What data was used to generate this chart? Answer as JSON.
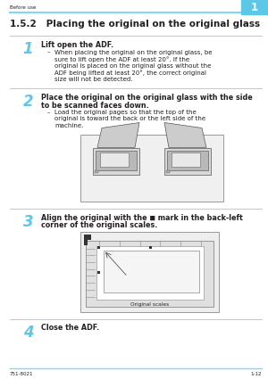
{
  "header_text": "Before use",
  "header_number": "1",
  "header_line_color": "#7fd8f0",
  "title": "1.5.2   Placing the original on the original glass",
  "footer_left": "751-8021",
  "footer_right": "1-12",
  "bg_color": "#ffffff",
  "text_color": "#231f20",
  "step_num_color": "#5bc8e8",
  "divider_color": "#bbbbbb",
  "heading_fontsize": 5.8,
  "body_fontsize": 5.0,
  "header_fontsize": 4.0,
  "footer_fontsize": 4.0,
  "title_fontsize": 7.5,
  "step_num_fontsize": 12,
  "lm": 0.035,
  "rm": 0.975,
  "step_col": 0.105,
  "text_col": 0.155,
  "bullet_col": 0.175,
  "bullet_text_col": 0.205
}
